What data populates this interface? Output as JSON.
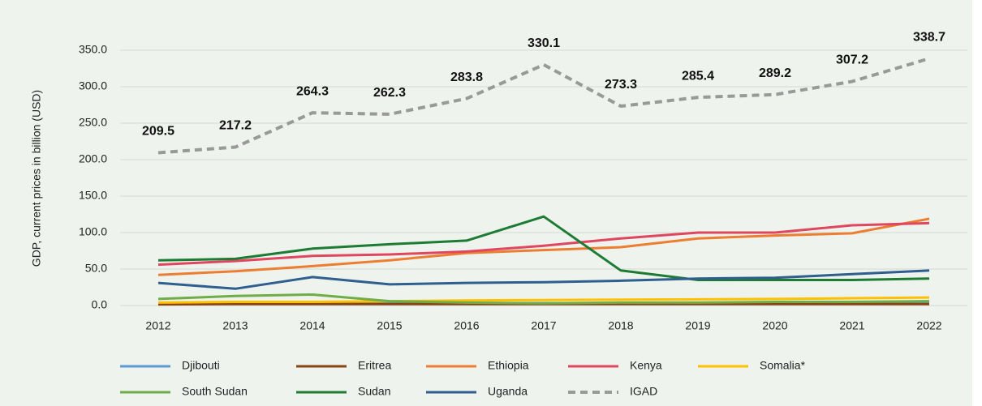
{
  "chart_data": {
    "type": "line",
    "y_label": "GDP, current prices in billion (USD)",
    "categories": [
      "2012",
      "2013",
      "2014",
      "2015",
      "2016",
      "2017",
      "2018",
      "2019",
      "2020",
      "2021",
      "2022"
    ],
    "ylim": [
      0,
      350
    ],
    "yticks": [
      {
        "value": 0,
        "label": "0.0"
      },
      {
        "value": 50,
        "label": "50.0"
      },
      {
        "value": 100,
        "label": "100.0"
      },
      {
        "value": 150,
        "label": "150.0"
      },
      {
        "value": 200,
        "label": "200.0"
      },
      {
        "value": 250,
        "label": "250.0"
      },
      {
        "value": 300,
        "label": "300.0"
      },
      {
        "value": 350,
        "label": "350.0"
      }
    ],
    "grid": true,
    "legend": "bottom",
    "series": [
      {
        "name": "Djibouti",
        "color": "#5b9bd5",
        "values": [
          2.6,
          2.8,
          3.0,
          3.2,
          3.3,
          3.4,
          3.2,
          3.3,
          3.4,
          3.5,
          3.8
        ]
      },
      {
        "name": "Eritrea",
        "color": "#8b4513",
        "values": [
          1.5,
          2.0,
          2.0,
          2.0,
          2.0,
          2.0,
          2.0,
          2.0,
          2.0,
          2.0,
          2.0
        ]
      },
      {
        "name": "Ethiopia",
        "color": "#ed7d31",
        "values": [
          42,
          47,
          54,
          62,
          72,
          76,
          80,
          92,
          96,
          99,
          119
        ]
      },
      {
        "name": "Kenya",
        "color": "#e0475f",
        "values": [
          56,
          61,
          68,
          70,
          74,
          82,
          92,
          100,
          100,
          110,
          113
        ]
      },
      {
        "name": "Somalia*",
        "color": "#ffc000",
        "values": [
          4,
          5,
          5,
          6,
          7,
          7.5,
          8,
          8.5,
          9,
          10,
          11
        ]
      },
      {
        "name": "South Sudan",
        "color": "#70ad47",
        "values": [
          9,
          13,
          15,
          6,
          4,
          3,
          4,
          4,
          5,
          5,
          6
        ]
      },
      {
        "name": "Sudan",
        "color": "#1e7b34",
        "values": [
          62,
          64,
          78,
          84,
          89,
          122,
          48,
          35,
          35,
          35,
          37
        ]
      },
      {
        "name": "Uganda",
        "color": "#2e5f8e",
        "values": [
          31,
          23,
          39,
          29,
          31,
          32,
          34,
          37,
          38,
          43,
          48
        ]
      },
      {
        "name": "IGAD",
        "color": "#999999",
        "style": "dashed",
        "show_values": true,
        "values": [
          209.5,
          217.2,
          264.3,
          262.3,
          283.8,
          330.1,
          273.3,
          285.4,
          289.2,
          307.2,
          338.7
        ]
      }
    ]
  }
}
